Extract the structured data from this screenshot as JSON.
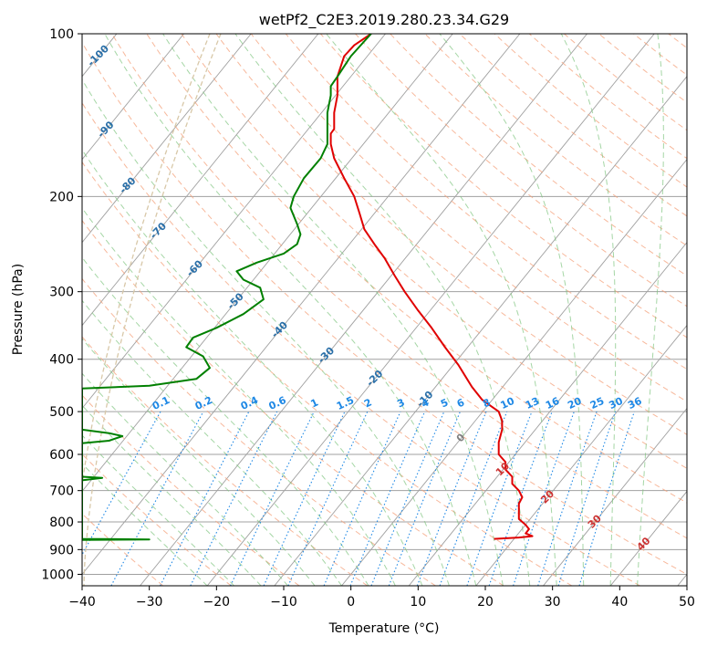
{
  "chart_data": {
    "type": "line",
    "title": "wetPf2_C2E3.2019.280.23.34.G29",
    "xlabel": "Temperature (°C)",
    "ylabel": "Pressure (hPa)",
    "xlim": [
      -40,
      50
    ],
    "ylim": [
      1050,
      100
    ],
    "y_scale": "log",
    "grid": true,
    "x_ticks": [
      -40,
      -30,
      -20,
      -10,
      0,
      10,
      20,
      30,
      40,
      50
    ],
    "y_ticks": [
      100,
      200,
      300,
      400,
      500,
      600,
      700,
      800,
      900,
      1000
    ],
    "colors": {
      "temperature": "#e00000",
      "dewpoint": "#008000",
      "isotherm": "#a0a0a0",
      "dry_adiabat": "#f4a07a",
      "moist_adiabat": "#7fc47f",
      "mixing_ratio": "#1e88e5",
      "lcl_curve": "#d8c8a8"
    },
    "series": [
      {
        "key": "temperature",
        "points": [
          [
            21.3,
            860
          ],
          [
            25.0,
            855
          ],
          [
            27.0,
            850
          ],
          [
            26.0,
            840
          ],
          [
            26.5,
            825
          ],
          [
            26.0,
            810
          ],
          [
            25.5,
            800
          ],
          [
            25.0,
            790
          ],
          [
            25.0,
            760
          ],
          [
            25.0,
            740
          ],
          [
            25.5,
            720
          ],
          [
            25.0,
            700
          ],
          [
            24.0,
            680
          ],
          [
            24.0,
            660
          ],
          [
            23.0,
            640
          ],
          [
            23.0,
            620
          ],
          [
            22.0,
            600
          ],
          [
            22.0,
            570
          ],
          [
            22.5,
            540
          ],
          [
            22.5,
            520
          ],
          [
            22.0,
            500
          ],
          [
            21.0,
            490
          ],
          [
            19.5,
            475
          ],
          [
            18.0,
            450
          ],
          [
            16.0,
            410
          ],
          [
            14.0,
            380
          ],
          [
            12.0,
            350
          ],
          [
            10.0,
            325
          ],
          [
            8.0,
            300
          ],
          [
            6.5,
            280
          ],
          [
            5.0,
            260
          ],
          [
            3.5,
            245
          ],
          [
            2.0,
            230
          ],
          [
            1.3,
            215
          ],
          [
            0.5,
            200
          ],
          [
            -1.0,
            185
          ],
          [
            -2.5,
            170
          ],
          [
            -3.0,
            160
          ],
          [
            -3.0,
            153
          ],
          [
            -2.5,
            150
          ],
          [
            -2.5,
            140
          ],
          [
            -2.0,
            130
          ],
          [
            -2.0,
            120
          ],
          [
            -1.0,
            110
          ],
          [
            0.5,
            105
          ],
          [
            3.0,
            100
          ]
        ]
      },
      {
        "key": "dewpoint",
        "points": [
          [
            -40,
            860
          ],
          [
            -30.0,
            862
          ],
          [
            -40,
            864
          ],
          [
            -40,
            660
          ],
          [
            -37.0,
            663
          ],
          [
            -40,
            670
          ],
          [
            -40,
            540
          ],
          [
            -36.0,
            548
          ],
          [
            -34.0,
            555
          ],
          [
            -36.0,
            566
          ],
          [
            -40,
            572
          ],
          [
            -40,
            453
          ],
          [
            -30.0,
            448
          ],
          [
            -23.0,
            435
          ],
          [
            -21.0,
            415
          ],
          [
            -22.0,
            395
          ],
          [
            -24.5,
            380
          ],
          [
            -23.5,
            365
          ],
          [
            -20.0,
            350
          ],
          [
            -16.0,
            330
          ],
          [
            -13.0,
            310
          ],
          [
            -13.5,
            295
          ],
          [
            -16.0,
            285
          ],
          [
            -17.0,
            275
          ],
          [
            -14.0,
            265
          ],
          [
            -10.0,
            255
          ],
          [
            -8.0,
            245
          ],
          [
            -7.5,
            235
          ],
          [
            -8.0,
            225
          ],
          [
            -9.0,
            210
          ],
          [
            -8.5,
            200
          ],
          [
            -7.0,
            185
          ],
          [
            -4.5,
            170
          ],
          [
            -3.5,
            160
          ],
          [
            -3.5,
            150
          ],
          [
            -3.5,
            140
          ],
          [
            -3.0,
            130
          ],
          [
            -3.0,
            125
          ],
          [
            -2.0,
            120
          ],
          [
            0.0,
            110
          ],
          [
            3.0,
            100
          ]
        ]
      }
    ],
    "temperature_line_labels": [
      "-100",
      "-90",
      "-80",
      "-70",
      "-60",
      "-50",
      "-40",
      "-30",
      "-20",
      "-10",
      "0",
      "10",
      "20",
      "30",
      "40"
    ],
    "mixing_ratio_labels": [
      "0.1",
      "0.2",
      "0.4",
      "0.6",
      "1",
      "1.5",
      "2",
      "3",
      "4",
      "5",
      "6",
      "8",
      "10",
      "13",
      "16",
      "20",
      "25",
      "30",
      "36"
    ]
  }
}
